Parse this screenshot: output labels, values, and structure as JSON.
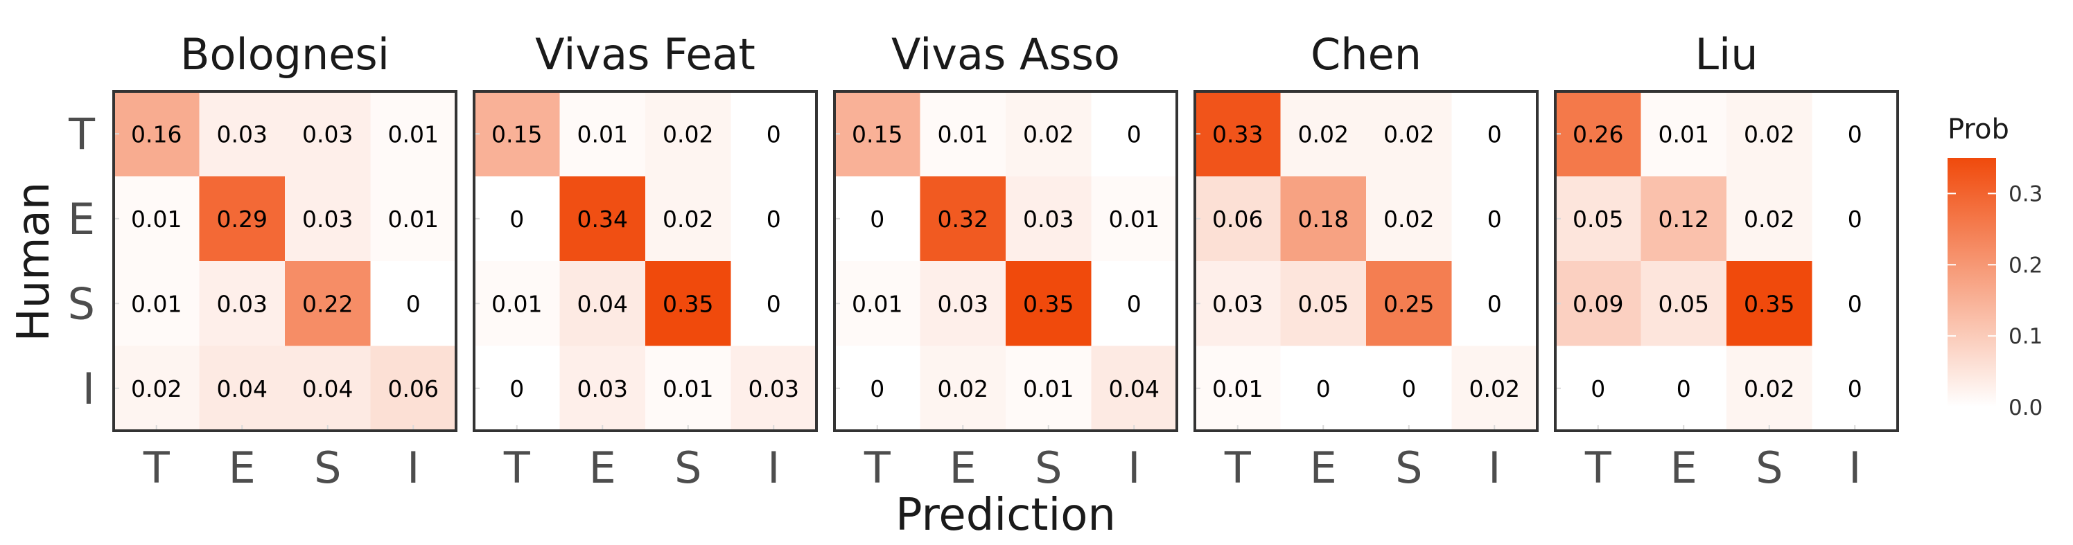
{
  "chart_data": {
    "type": "heatmap",
    "xlabel": "Prediction",
    "ylabel": "Human",
    "x_categories": [
      "T",
      "E",
      "S",
      "I"
    ],
    "y_categories": [
      "T",
      "E",
      "S",
      "I"
    ],
    "panels": [
      {
        "title": "Bolognesi",
        "values": [
          [
            0.16,
            0.03,
            0.03,
            0.01
          ],
          [
            0.01,
            0.29,
            0.03,
            0.01
          ],
          [
            0.01,
            0.03,
            0.22,
            0
          ],
          [
            0.02,
            0.04,
            0.04,
            0.06
          ]
        ],
        "labels": [
          [
            "0.16",
            "0.03",
            "0.03",
            "0.01"
          ],
          [
            "0.01",
            "0.29",
            "0.03",
            "0.01"
          ],
          [
            "0.01",
            "0.03",
            "0.22",
            "0"
          ],
          [
            "0.02",
            "0.04",
            "0.04",
            "0.06"
          ]
        ]
      },
      {
        "title": "Vivas Feat",
        "values": [
          [
            0.15,
            0.01,
            0.02,
            0
          ],
          [
            0,
            0.34,
            0.02,
            0
          ],
          [
            0.01,
            0.04,
            0.35,
            0
          ],
          [
            0,
            0.03,
            0.01,
            0.03
          ]
        ],
        "labels": [
          [
            "0.15",
            "0.01",
            "0.02",
            "0"
          ],
          [
            "0",
            "0.34",
            "0.02",
            "0"
          ],
          [
            "0.01",
            "0.04",
            "0.35",
            "0"
          ],
          [
            "0",
            "0.03",
            "0.01",
            "0.03"
          ]
        ]
      },
      {
        "title": "Vivas Asso",
        "values": [
          [
            0.15,
            0.01,
            0.02,
            0
          ],
          [
            0,
            0.32,
            0.03,
            0.01
          ],
          [
            0.01,
            0.03,
            0.35,
            0
          ],
          [
            0,
            0.02,
            0.01,
            0.04
          ]
        ],
        "labels": [
          [
            "0.15",
            "0.01",
            "0.02",
            "0"
          ],
          [
            "0",
            "0.32",
            "0.03",
            "0.01"
          ],
          [
            "0.01",
            "0.03",
            "0.35",
            "0"
          ],
          [
            "0",
            "0.02",
            "0.01",
            "0.04"
          ]
        ]
      },
      {
        "title": "Chen",
        "values": [
          [
            0.33,
            0.02,
            0.02,
            0
          ],
          [
            0.06,
            0.18,
            0.02,
            0
          ],
          [
            0.03,
            0.05,
            0.25,
            0
          ],
          [
            0.01,
            0,
            0,
            0.02
          ]
        ],
        "labels": [
          [
            "0.33",
            "0.02",
            "0.02",
            "0"
          ],
          [
            "0.06",
            "0.18",
            "0.02",
            "0"
          ],
          [
            "0.03",
            "0.05",
            "0.25",
            "0"
          ],
          [
            "0.01",
            "0",
            "0",
            "0.02"
          ]
        ]
      },
      {
        "title": "Liu",
        "values": [
          [
            0.26,
            0.01,
            0.02,
            0
          ],
          [
            0.05,
            0.12,
            0.02,
            0
          ],
          [
            0.09,
            0.05,
            0.35,
            0
          ],
          [
            0,
            0,
            0.02,
            0
          ]
        ],
        "labels": [
          [
            "0.26",
            "0.01",
            "0.02",
            "0"
          ],
          [
            "0.05",
            "0.12",
            "0.02",
            "0"
          ],
          [
            "0.09",
            "0.05",
            "0.35",
            "0"
          ],
          [
            "0",
            "0",
            "0.02",
            "0"
          ]
        ]
      }
    ],
    "legend": {
      "title": "Prob",
      "placement": "right",
      "ticks": [
        0.0,
        0.1,
        0.2,
        0.3
      ],
      "tick_labels": [
        "0.0",
        "0.1",
        "0.2",
        "0.3"
      ],
      "range": [
        0,
        0.35
      ]
    },
    "colors": {
      "low": "#ffffff",
      "high": "#f04a0c",
      "panel_border": "#333333",
      "tick_mark": "#d9d9d9"
    }
  }
}
